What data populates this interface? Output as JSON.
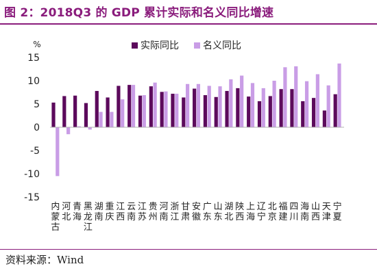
{
  "title": "图 2：2018Q3 的 GDP 累计实际和名义同比增速",
  "source": "资料来源：Wind",
  "chart_data": {
    "type": "bar",
    "ylabel": "%",
    "ylim": [
      -15,
      15
    ],
    "yticks": [
      15,
      10,
      5,
      0,
      -5,
      -10,
      -15
    ],
    "categories": [
      "内蒙古",
      "河北",
      "青海",
      "黑龙江",
      "湖南",
      "重庆",
      "江西",
      "云南",
      "江苏",
      "贵州",
      "河南",
      "浙江",
      "甘肃",
      "安徽",
      "广东",
      "山东",
      "湖北",
      "陕西",
      "上海",
      "辽宁",
      "北京",
      "福建",
      "四川",
      "海南",
      "山西",
      "天津",
      "宁夏"
    ],
    "series": [
      {
        "name": "实际同比",
        "color": "#5c0a5c",
        "values": [
          5.3,
          6.7,
          6.8,
          5.2,
          7.8,
          6.4,
          8.9,
          9.1,
          6.8,
          8.8,
          7.6,
          7.2,
          6.4,
          8.3,
          6.9,
          6.5,
          7.8,
          8.4,
          6.6,
          5.6,
          6.7,
          8.2,
          8.2,
          5.6,
          6.3,
          3.6,
          7.1
        ]
      },
      {
        "name": "名义同比",
        "color": "#c99de6",
        "values": [
          -10.5,
          -1.5,
          0.2,
          -0.5,
          3.3,
          3.3,
          6.0,
          9.1,
          6.9,
          9.6,
          7.7,
          7.2,
          9.3,
          9.3,
          8.9,
          8.8,
          10.3,
          11.1,
          9.5,
          8.4,
          10.0,
          12.9,
          13.1,
          9.9,
          11.4,
          9.0,
          13.7
        ]
      }
    ],
    "legend_position": "top"
  }
}
